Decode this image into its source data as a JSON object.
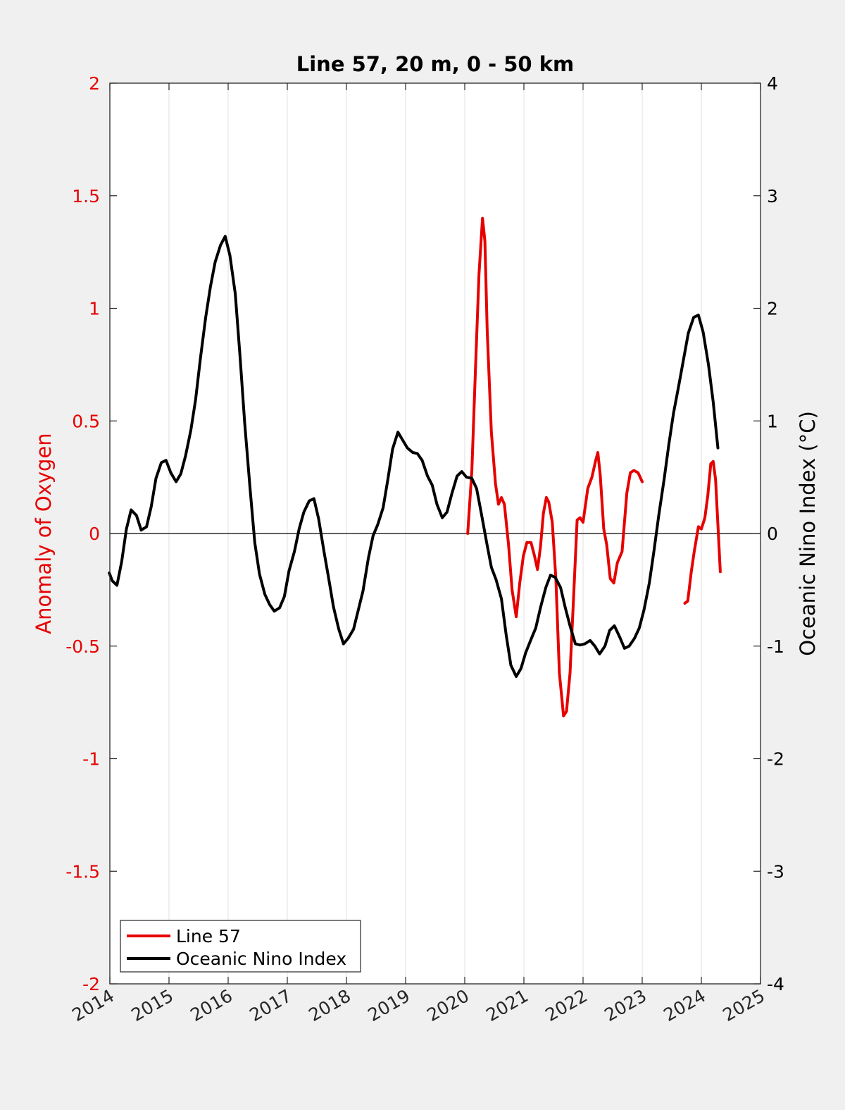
{
  "chart_data": {
    "type": "line",
    "title": "Line 57, 20 m, 0 - 50 km",
    "xlim": [
      2014,
      2025
    ],
    "x_ticks": [
      "2014",
      "2015",
      "2016",
      "2017",
      "2018",
      "2019",
      "2020",
      "2021",
      "2022",
      "2023",
      "2024",
      "2025"
    ],
    "left_axis": {
      "label": "Anomaly of Oxygen",
      "color": "#e60000",
      "ylim": [
        -2,
        2
      ],
      "ticks": [
        "-2",
        "-1.5",
        "-1",
        "-0.5",
        "0",
        "0.5",
        "1",
        "1.5",
        "2"
      ]
    },
    "right_axis": {
      "label": "Oceanic Nino Index (°C)",
      "color": "#000000",
      "ylim": [
        -4,
        4
      ],
      "ticks": [
        "-4",
        "-3",
        "-2",
        "-1",
        "0",
        "1",
        "2",
        "3",
        "4"
      ]
    },
    "zero_line": true,
    "grid": "vertical",
    "legend": {
      "position": "bottom-left",
      "entries": [
        "Line 57",
        "Oceanic Nino Index"
      ]
    },
    "series": [
      {
        "name": "Line 57",
        "axis": "left",
        "color": "#e60000",
        "segments": [
          [
            [
              2020.05,
              0.0
            ],
            [
              2020.12,
              0.28
            ],
            [
              2020.18,
              0.72
            ],
            [
              2020.24,
              1.15
            ],
            [
              2020.3,
              1.4
            ],
            [
              2020.34,
              1.3
            ],
            [
              2020.38,
              0.9
            ],
            [
              2020.45,
              0.45
            ],
            [
              2020.52,
              0.22
            ],
            [
              2020.57,
              0.13
            ],
            [
              2020.62,
              0.16
            ],
            [
              2020.67,
              0.13
            ],
            [
              2020.74,
              -0.05
            ],
            [
              2020.8,
              -0.25
            ],
            [
              2020.87,
              -0.37
            ],
            [
              2020.93,
              -0.22
            ],
            [
              2020.99,
              -0.1
            ],
            [
              2021.05,
              -0.04
            ],
            [
              2021.12,
              -0.04
            ],
            [
              2021.18,
              -0.1
            ],
            [
              2021.23,
              -0.16
            ],
            [
              2021.28,
              -0.06
            ],
            [
              2021.33,
              0.09
            ],
            [
              2021.38,
              0.16
            ],
            [
              2021.42,
              0.14
            ],
            [
              2021.48,
              0.05
            ],
            [
              2021.54,
              -0.2
            ],
            [
              2021.6,
              -0.62
            ],
            [
              2021.67,
              -0.81
            ],
            [
              2021.72,
              -0.79
            ],
            [
              2021.78,
              -0.62
            ],
            [
              2021.84,
              -0.28
            ],
            [
              2021.9,
              0.06
            ],
            [
              2021.95,
              0.07
            ],
            [
              2022.0,
              0.05
            ],
            [
              2022.08,
              0.2
            ],
            [
              2022.15,
              0.25
            ],
            [
              2022.21,
              0.32
            ],
            [
              2022.25,
              0.36
            ],
            [
              2022.29,
              0.26
            ],
            [
              2022.35,
              0.02
            ],
            [
              2022.4,
              -0.05
            ],
            [
              2022.46,
              -0.2
            ],
            [
              2022.52,
              -0.22
            ],
            [
              2022.58,
              -0.13
            ],
            [
              2022.66,
              -0.08
            ],
            [
              2022.74,
              0.18
            ],
            [
              2022.8,
              0.27
            ],
            [
              2022.86,
              0.28
            ],
            [
              2022.93,
              0.27
            ],
            [
              2023.0,
              0.23
            ]
          ],
          [
            [
              2023.72,
              -0.31
            ],
            [
              2023.77,
              -0.3
            ],
            [
              2023.83,
              -0.17
            ],
            [
              2023.88,
              -0.08
            ],
            [
              2023.95,
              0.03
            ],
            [
              2024.0,
              0.02
            ],
            [
              2024.06,
              0.07
            ],
            [
              2024.11,
              0.17
            ],
            [
              2024.16,
              0.31
            ],
            [
              2024.2,
              0.32
            ],
            [
              2024.24,
              0.24
            ],
            [
              2024.28,
              0.04
            ],
            [
              2024.32,
              -0.17
            ]
          ]
        ]
      },
      {
        "name": "Oceanic Nino Index",
        "axis": "right",
        "color": "#000000",
        "segments": [
          [
            [
              2013.99,
              -0.35
            ],
            [
              2014.04,
              -0.42
            ],
            [
              2014.12,
              -0.46
            ],
            [
              2014.2,
              -0.25
            ],
            [
              2014.28,
              0.04
            ],
            [
              2014.36,
              0.21
            ],
            [
              2014.45,
              0.16
            ],
            [
              2014.53,
              0.03
            ],
            [
              2014.62,
              0.06
            ],
            [
              2014.7,
              0.24
            ],
            [
              2014.78,
              0.49
            ],
            [
              2014.87,
              0.63
            ],
            [
              2014.95,
              0.65
            ],
            [
              2015.03,
              0.54
            ],
            [
              2015.12,
              0.46
            ],
            [
              2015.2,
              0.53
            ],
            [
              2015.28,
              0.69
            ],
            [
              2015.37,
              0.92
            ],
            [
              2015.45,
              1.19
            ],
            [
              2015.53,
              1.55
            ],
            [
              2015.62,
              1.92
            ],
            [
              2015.7,
              2.19
            ],
            [
              2015.78,
              2.41
            ],
            [
              2015.87,
              2.56
            ],
            [
              2015.95,
              2.64
            ],
            [
              2016.03,
              2.47
            ],
            [
              2016.12,
              2.13
            ],
            [
              2016.2,
              1.58
            ],
            [
              2016.28,
              0.98
            ],
            [
              2016.37,
              0.4
            ],
            [
              2016.45,
              -0.08
            ],
            [
              2016.53,
              -0.36
            ],
            [
              2016.62,
              -0.54
            ],
            [
              2016.7,
              -0.63
            ],
            [
              2016.78,
              -0.69
            ],
            [
              2016.87,
              -0.66
            ],
            [
              2016.95,
              -0.56
            ],
            [
              2017.03,
              -0.33
            ],
            [
              2017.12,
              -0.16
            ],
            [
              2017.2,
              0.04
            ],
            [
              2017.28,
              0.19
            ],
            [
              2017.37,
              0.29
            ],
            [
              2017.45,
              0.31
            ],
            [
              2017.53,
              0.13
            ],
            [
              2017.62,
              -0.16
            ],
            [
              2017.7,
              -0.4
            ],
            [
              2017.78,
              -0.65
            ],
            [
              2017.87,
              -0.85
            ],
            [
              2017.95,
              -0.98
            ],
            [
              2018.03,
              -0.93
            ],
            [
              2018.12,
              -0.85
            ],
            [
              2018.2,
              -0.68
            ],
            [
              2018.28,
              -0.51
            ],
            [
              2018.37,
              -0.22
            ],
            [
              2018.45,
              -0.02
            ],
            [
              2018.53,
              0.08
            ],
            [
              2018.62,
              0.23
            ],
            [
              2018.7,
              0.48
            ],
            [
              2018.78,
              0.75
            ],
            [
              2018.87,
              0.9
            ],
            [
              2018.95,
              0.83
            ],
            [
              2019.03,
              0.76
            ],
            [
              2019.12,
              0.72
            ],
            [
              2019.2,
              0.71
            ],
            [
              2019.28,
              0.65
            ],
            [
              2019.37,
              0.51
            ],
            [
              2019.45,
              0.43
            ],
            [
              2019.53,
              0.26
            ],
            [
              2019.62,
              0.14
            ],
            [
              2019.7,
              0.19
            ],
            [
              2019.78,
              0.35
            ],
            [
              2019.87,
              0.51
            ],
            [
              2019.95,
              0.55
            ],
            [
              2020.03,
              0.5
            ],
            [
              2020.12,
              0.49
            ],
            [
              2020.2,
              0.4
            ],
            [
              2020.28,
              0.18
            ],
            [
              2020.37,
              -0.08
            ],
            [
              2020.45,
              -0.3
            ],
            [
              2020.53,
              -0.41
            ],
            [
              2020.62,
              -0.58
            ],
            [
              2020.7,
              -0.9
            ],
            [
              2020.78,
              -1.17
            ],
            [
              2020.87,
              -1.27
            ],
            [
              2020.95,
              -1.2
            ],
            [
              2021.03,
              -1.06
            ],
            [
              2021.12,
              -0.94
            ],
            [
              2021.2,
              -0.84
            ],
            [
              2021.28,
              -0.66
            ],
            [
              2021.37,
              -0.48
            ],
            [
              2021.45,
              -0.37
            ],
            [
              2021.53,
              -0.39
            ],
            [
              2021.62,
              -0.48
            ],
            [
              2021.7,
              -0.66
            ],
            [
              2021.78,
              -0.82
            ],
            [
              2021.87,
              -0.98
            ],
            [
              2021.95,
              -0.99
            ],
            [
              2022.03,
              -0.98
            ],
            [
              2022.12,
              -0.95
            ],
            [
              2022.2,
              -1.0
            ],
            [
              2022.28,
              -1.07
            ],
            [
              2022.37,
              -1.0
            ],
            [
              2022.45,
              -0.86
            ],
            [
              2022.53,
              -0.82
            ],
            [
              2022.62,
              -0.92
            ],
            [
              2022.7,
              -1.02
            ],
            [
              2022.78,
              -1.0
            ],
            [
              2022.87,
              -0.93
            ],
            [
              2022.95,
              -0.84
            ],
            [
              2023.03,
              -0.68
            ],
            [
              2023.12,
              -0.44
            ],
            [
              2023.2,
              -0.15
            ],
            [
              2023.28,
              0.16
            ],
            [
              2023.37,
              0.48
            ],
            [
              2023.45,
              0.79
            ],
            [
              2023.53,
              1.07
            ],
            [
              2023.62,
              1.32
            ],
            [
              2023.7,
              1.55
            ],
            [
              2023.78,
              1.78
            ],
            [
              2023.87,
              1.92
            ],
            [
              2023.95,
              1.94
            ],
            [
              2024.03,
              1.79
            ],
            [
              2024.12,
              1.5
            ],
            [
              2024.2,
              1.17
            ],
            [
              2024.28,
              0.76
            ]
          ]
        ]
      }
    ]
  }
}
